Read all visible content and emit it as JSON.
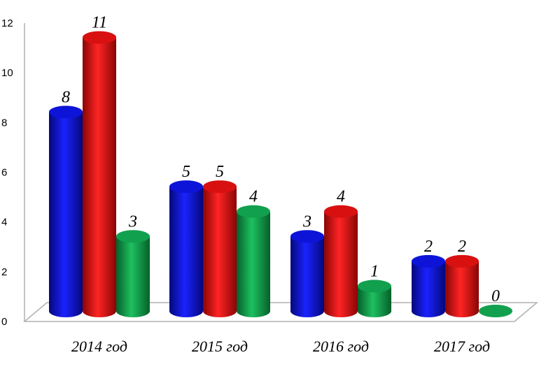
{
  "chart_data": {
    "type": "bar",
    "categories": [
      "2014 год",
      "2015 год",
      "2016 год",
      "2017 год"
    ],
    "series": [
      {
        "color": "#0a10e6",
        "values": [
          8,
          5,
          3,
          2
        ]
      },
      {
        "color": "#e60e0e",
        "values": [
          11,
          5,
          4,
          2
        ]
      },
      {
        "color": "#0f9e4a",
        "values": [
          3,
          4,
          1,
          0
        ]
      }
    ],
    "ylim": [
      0,
      12
    ],
    "yticks": [
      "0",
      "2",
      "4",
      "6",
      "8",
      "10",
      "12"
    ],
    "bar_style": "3d-cylinder",
    "data_labels": true,
    "legend": false,
    "grid": false
  }
}
